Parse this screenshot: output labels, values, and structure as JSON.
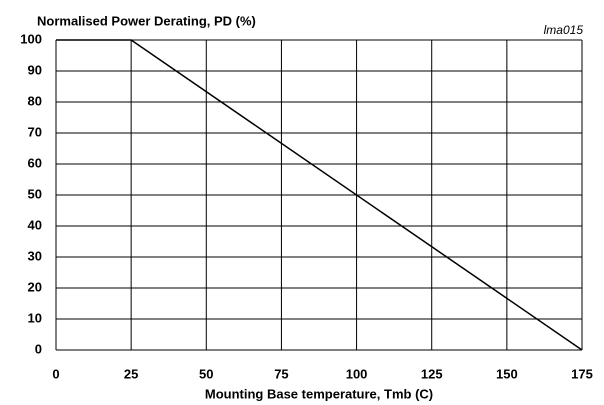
{
  "chart_data": {
    "type": "line",
    "title": "Normalised Power Derating, PD (%)",
    "x_label": "Mounting Base temperature, Tmb (C)",
    "annotation": "lma015",
    "x": [
      0,
      25,
      175
    ],
    "series": [
      {
        "name": "PD",
        "color": "#000000",
        "values": [
          100,
          100,
          0
        ]
      }
    ],
    "xlim": [
      0,
      175
    ],
    "xticks": [
      0,
      25,
      50,
      75,
      100,
      125,
      150,
      175
    ],
    "ylim": [
      0,
      100
    ],
    "yticks": [
      0,
      10,
      20,
      30,
      40,
      50,
      60,
      70,
      80,
      90,
      100
    ],
    "grid": true
  }
}
